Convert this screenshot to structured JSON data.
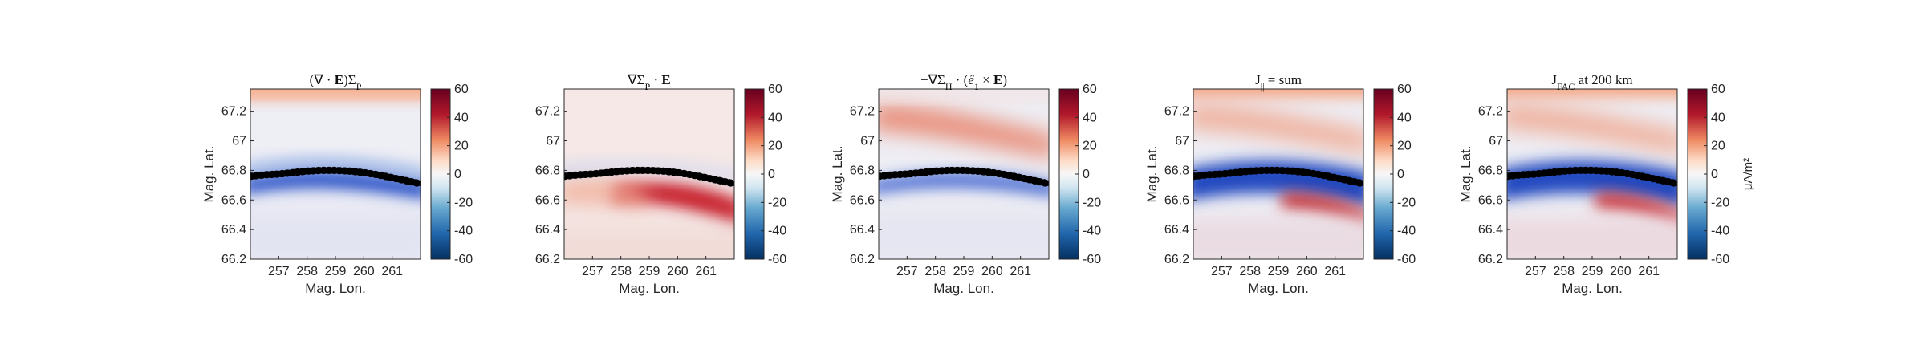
{
  "chart_data": {
    "type": "heatmap",
    "colormap": {
      "min": -60,
      "max": 60,
      "low": "#053061",
      "mid": "#f7f7f7",
      "high": "#67001f"
    },
    "boundary_color": "#000000",
    "boundary": {
      "lon": [
        256.0,
        256.5,
        257.0,
        257.5,
        258.0,
        258.5,
        259.0,
        259.5,
        260.0,
        260.5,
        261.0,
        261.5,
        262.0
      ],
      "lat": [
        66.76,
        66.77,
        66.775,
        66.785,
        66.795,
        66.8,
        66.8,
        66.795,
        66.785,
        66.77,
        66.75,
        66.73,
        66.71
      ]
    },
    "panels": [
      {
        "title_parts": [
          {
            "t": "(∇ · "
          },
          {
            "t": "E",
            "b": true
          },
          {
            "t": ")Σ"
          },
          {
            "t": "P",
            "sub": true
          }
        ],
        "xlabel": "Mag. Lon.",
        "ylabel": "Mag. Lat.",
        "xticks": [
          "257",
          "258",
          "259",
          "260",
          "261"
        ],
        "yticks": [
          "66.2",
          "66.4",
          "66.6",
          "66.8",
          "67",
          "67.2"
        ],
        "cbar_ticks": [
          "60",
          "40",
          "20",
          "0",
          "-20",
          "-40",
          "-60"
        ],
        "cbar_label": ""
      },
      {
        "title_parts": [
          {
            "t": "∇Σ"
          },
          {
            "t": "P",
            "sub": true
          },
          {
            "t": " · "
          },
          {
            "t": "E",
            "b": true
          }
        ],
        "xlabel": "Mag. Lon.",
        "ylabel": "",
        "xticks": [
          "257",
          "258",
          "259",
          "260",
          "261"
        ],
        "yticks": [
          "66.2",
          "66.4",
          "66.6",
          "66.8",
          "67",
          "67.2"
        ],
        "cbar_ticks": [
          "60",
          "40",
          "20",
          "0",
          "-20",
          "-40",
          "-60"
        ],
        "cbar_label": ""
      },
      {
        "title_parts": [
          {
            "t": "−∇Σ"
          },
          {
            "t": "H",
            "sub": true
          },
          {
            "t": " · ("
          },
          {
            "t": "ê",
            "i": true
          },
          {
            "t": "1",
            "sub": true
          },
          {
            "t": " × "
          },
          {
            "t": "E",
            "b": true
          },
          {
            "t": ")"
          }
        ],
        "xlabel": "Mag. Lon.",
        "ylabel": "Mag. Lat.",
        "xticks": [
          "257",
          "258",
          "259",
          "260",
          "261"
        ],
        "yticks": [
          "66.2",
          "66.4",
          "66.6",
          "66.8",
          "67",
          "67.2"
        ],
        "cbar_ticks": [
          "60",
          "40",
          "20",
          "0",
          "-20",
          "-40",
          "-60"
        ],
        "cbar_label": ""
      },
      {
        "title_parts": [
          {
            "t": "J"
          },
          {
            "t": "||",
            "sub": true
          },
          {
            "t": " = sum"
          }
        ],
        "xlabel": "Mag. Lon.",
        "ylabel": "Mag. Lat.",
        "xticks": [
          "257",
          "258",
          "259",
          "260",
          "261"
        ],
        "yticks": [
          "66.2",
          "66.4",
          "66.6",
          "66.8",
          "67",
          "67.2"
        ],
        "cbar_ticks": [
          "60",
          "40",
          "20",
          "0",
          "-20",
          "-40",
          "-60"
        ],
        "cbar_label": ""
      },
      {
        "title_parts": [
          {
            "t": "J"
          },
          {
            "t": "FAC",
            "sub": true
          },
          {
            "t": " at 200 km"
          }
        ],
        "xlabel": "Mag. Lon.",
        "ylabel": "Mag. Lat.",
        "xticks": [
          "257",
          "258",
          "259",
          "260",
          "261"
        ],
        "yticks": [
          "66.2",
          "66.4",
          "66.6",
          "66.8",
          "67",
          "67.2"
        ],
        "cbar_ticks": [
          "60",
          "40",
          "20",
          "0",
          "-20",
          "-40",
          "-60"
        ],
        "cbar_label": "μA/m²"
      }
    ]
  }
}
